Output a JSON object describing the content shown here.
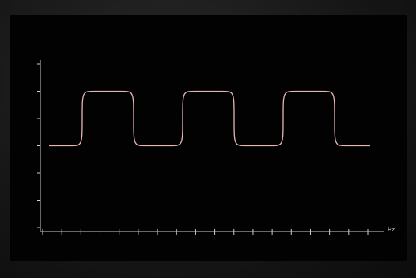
{
  "chart_data": {
    "type": "line",
    "title": "",
    "xlabel": "Hz",
    "ylabel": "",
    "grid": false,
    "y_ticks": [
      "",
      "",
      "",
      "",
      "",
      "",
      ""
    ],
    "x_tick_count": 18,
    "series": [
      {
        "color": "#e8b4b4",
        "shape": "periodic-rounded-square-wave",
        "periods": 3,
        "low_level_tick": 3,
        "high_level_tick": 1
      }
    ],
    "annotations": {
      "left_freq": "",
      "right_freq": ""
    }
  }
}
